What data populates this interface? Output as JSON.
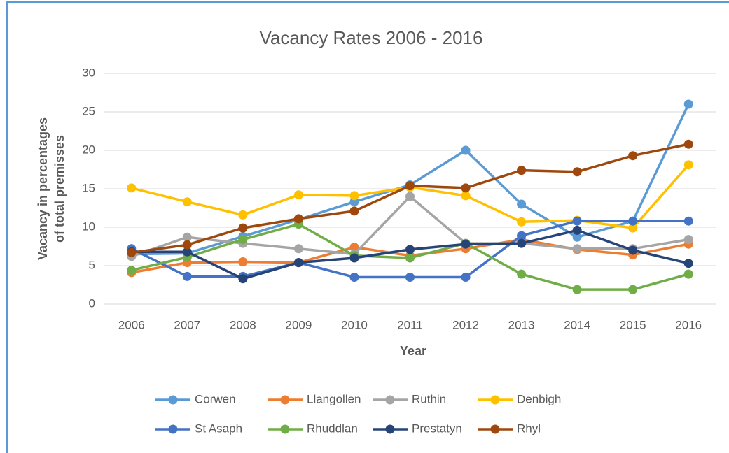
{
  "chart_data": {
    "type": "line",
    "title": "Vacancy Rates 2006 - 2016",
    "xlabel": "Year",
    "ylabel": [
      "Vacancy in percentages",
      "of total premisses"
    ],
    "categories": [
      "2006",
      "2007",
      "2008",
      "2009",
      "2010",
      "2011",
      "2012",
      "2013",
      "2014",
      "2015",
      "2016"
    ],
    "ylim": [
      0,
      30
    ],
    "yticks": [
      0,
      5,
      10,
      15,
      20,
      25,
      30
    ],
    "grid": true,
    "series": [
      {
        "name": "Corwen",
        "color": "#5b9bd5",
        "values": [
          6.5,
          6.6,
          8.8,
          11,
          13.3,
          15.5,
          20,
          13,
          8.7,
          10.8,
          26
        ]
      },
      {
        "name": "Llangollen",
        "color": "#ed7d31",
        "values": [
          4.1,
          5.4,
          5.5,
          5.4,
          7.4,
          6.3,
          7.2,
          8.4,
          7.1,
          6.4,
          7.8
        ]
      },
      {
        "name": "Ruthin",
        "color": "#a5a5a5",
        "values": [
          6.2,
          8.7,
          7.9,
          7.2,
          6.5,
          14,
          7.9,
          7.9,
          7.2,
          7.2,
          8.4
        ]
      },
      {
        "name": "Denbigh",
        "color": "#ffc000",
        "values": [
          15.1,
          13.3,
          11.6,
          14.2,
          14.1,
          15.2,
          14.1,
          10.7,
          10.9,
          9.9,
          18.1
        ]
      },
      {
        "name": "St Asaph",
        "color": "#4472c4",
        "values": [
          7.2,
          3.6,
          3.6,
          5.4,
          3.5,
          3.5,
          3.5,
          8.9,
          10.8,
          10.8,
          10.8
        ]
      },
      {
        "name": "Rhuddlan",
        "color": "#70ad47",
        "values": [
          4.4,
          6.1,
          8.4,
          10.4,
          6.3,
          6.0,
          7.9,
          3.9,
          1.9,
          1.9,
          3.9
        ]
      },
      {
        "name": "Prestatyn",
        "color": "#264478",
        "values": [
          6.8,
          6.8,
          3.3,
          5.4,
          6.0,
          7.1,
          7.8,
          7.9,
          9.6,
          7.0,
          5.3
        ]
      },
      {
        "name": "Rhyl",
        "color": "#9e480e",
        "values": [
          6.7,
          7.7,
          9.9,
          11.1,
          12.1,
          15.4,
          15.1,
          17.4,
          17.2,
          19.3,
          20.8
        ]
      }
    ]
  }
}
